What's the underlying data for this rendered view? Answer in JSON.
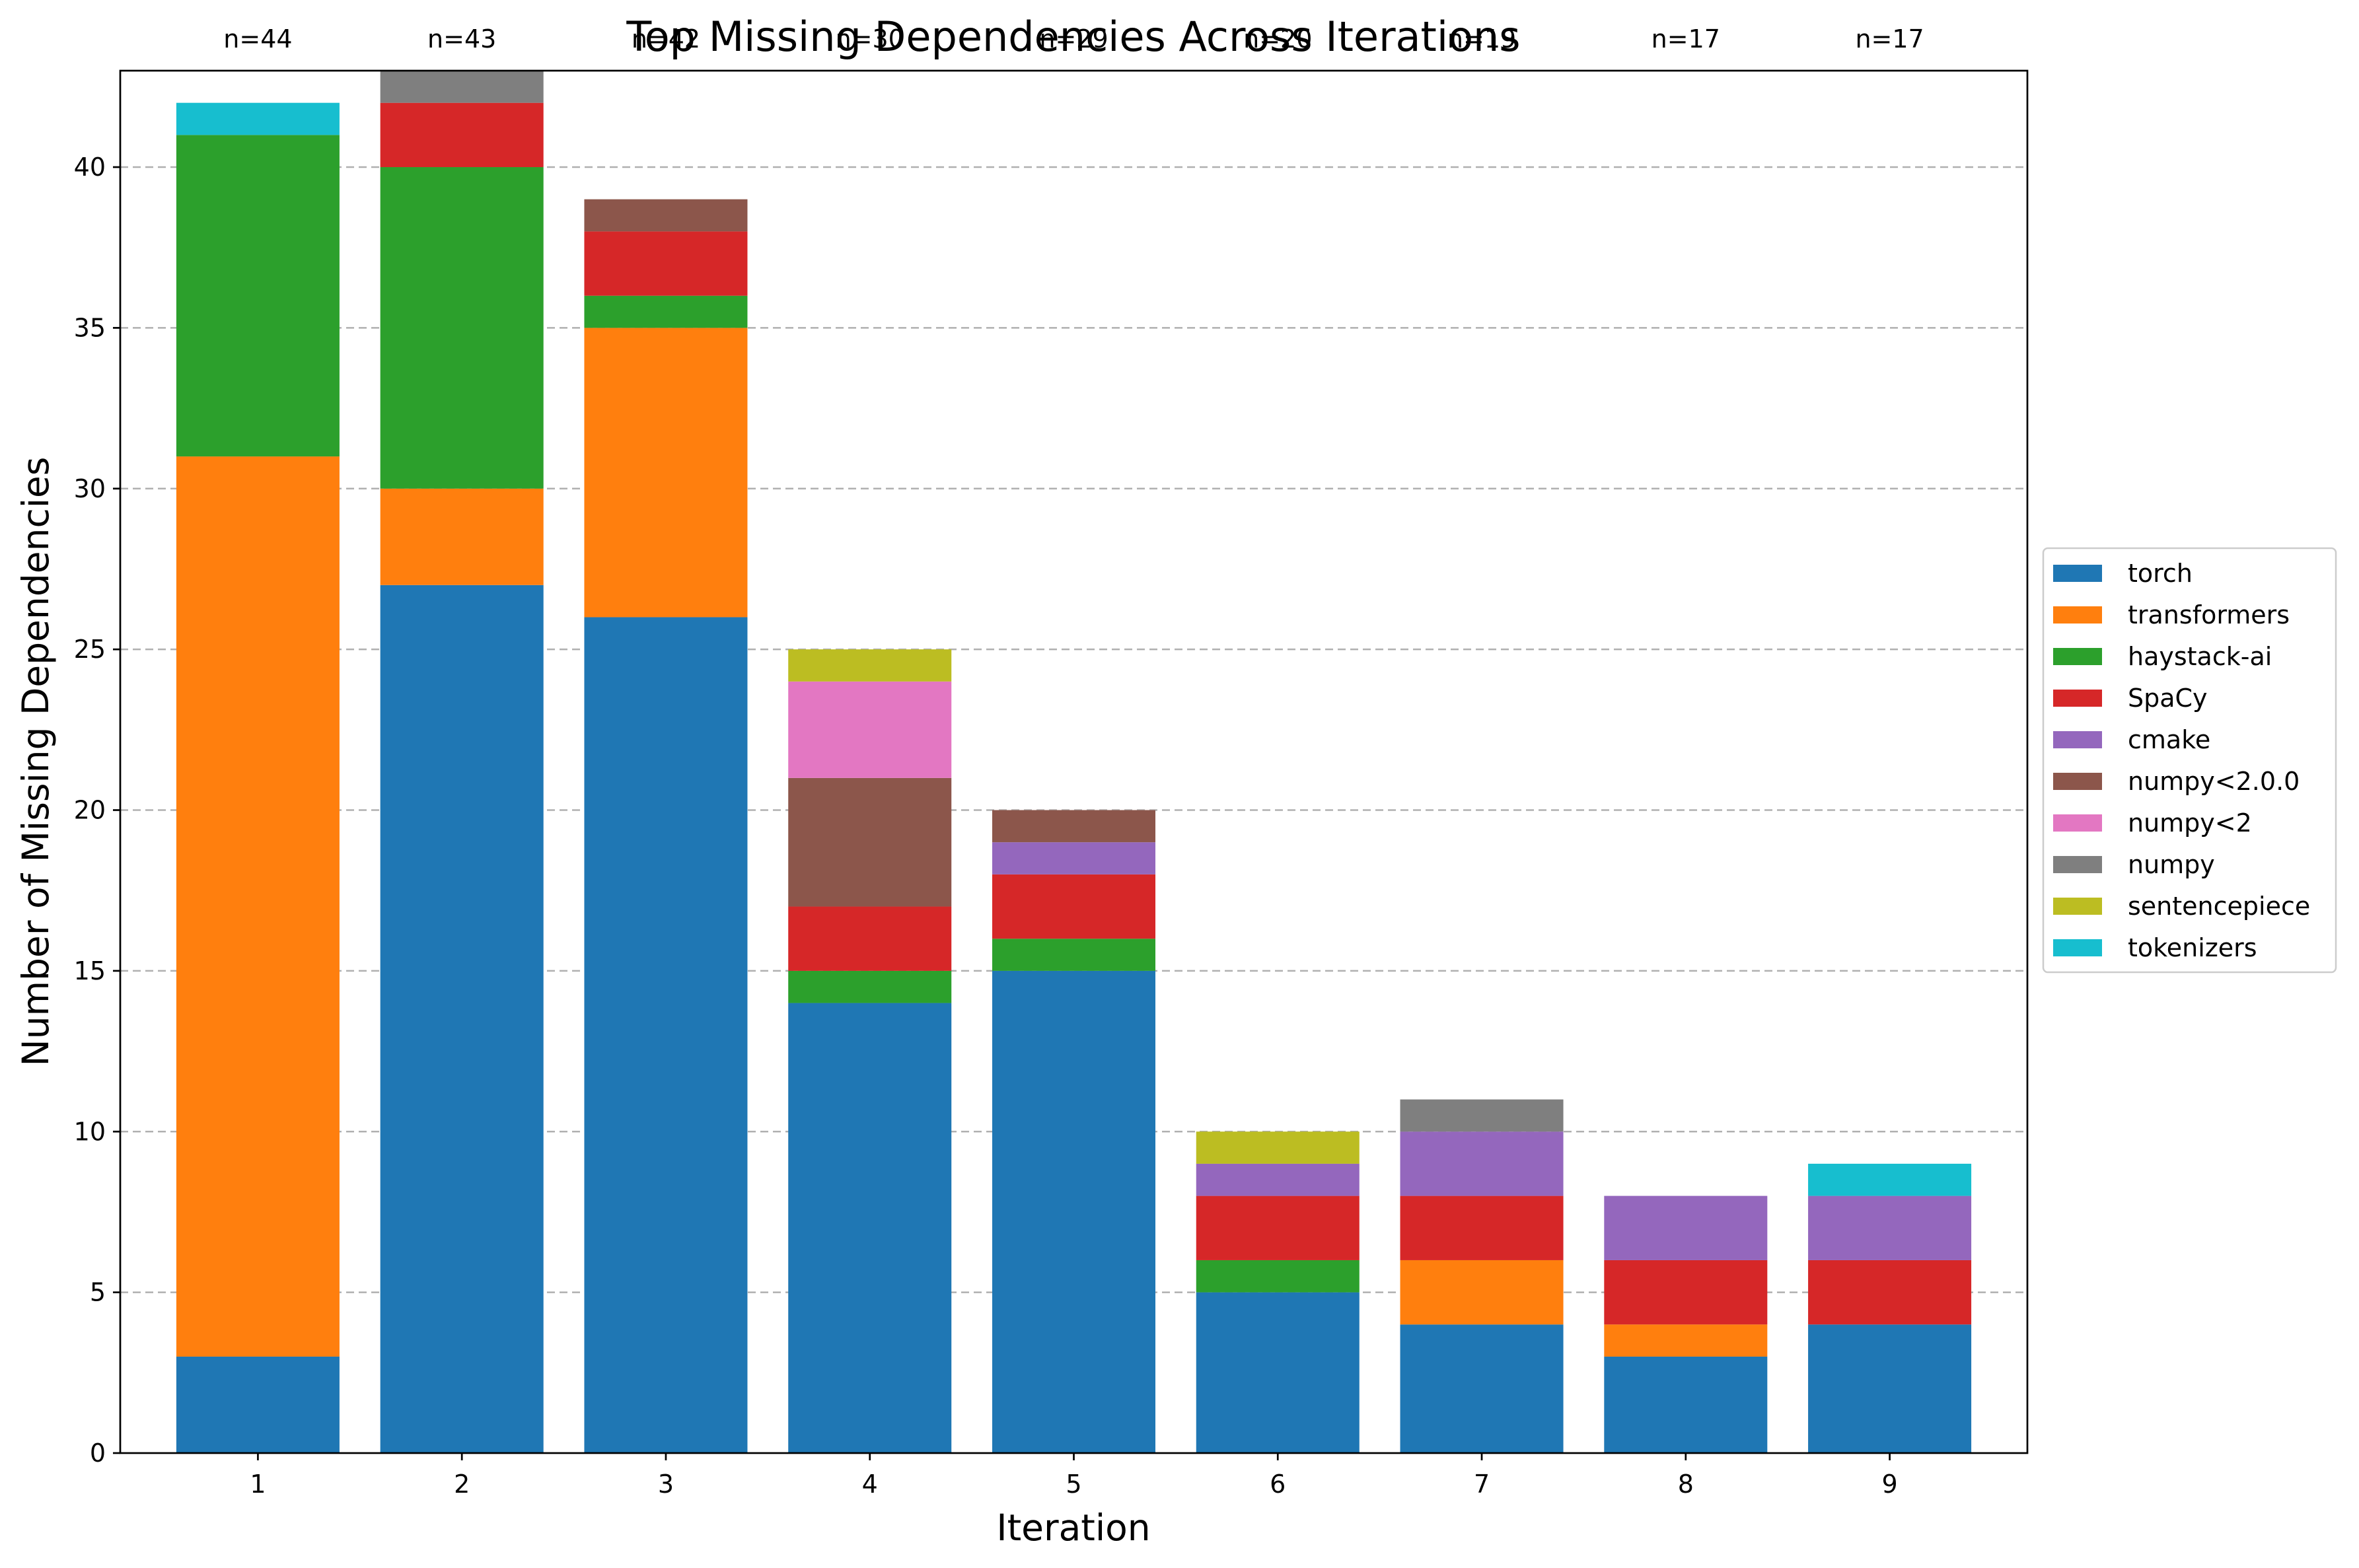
{
  "chart_data": {
    "type": "bar",
    "stacked": true,
    "title": "Top Missing Dependencies Across Iterations",
    "xlabel": "Iteration",
    "ylabel": "Number of Missing Dependencies",
    "categories": [
      "1",
      "2",
      "3",
      "4",
      "5",
      "6",
      "7",
      "8",
      "9"
    ],
    "ylim": [
      0,
      43
    ],
    "yticks": [
      0,
      5,
      10,
      15,
      20,
      25,
      30,
      35,
      40
    ],
    "grid": "y-dashed",
    "legend_position": "right",
    "count_labels": [
      "n=44",
      "n=43",
      "n=42",
      "n=30",
      "n=29",
      "n=20",
      "n=19",
      "n=17",
      "n=17"
    ],
    "series": [
      {
        "name": "torch",
        "color": "#1f77b4",
        "values": [
          3,
          27,
          26,
          14,
          15,
          5,
          4,
          3,
          4
        ]
      },
      {
        "name": "transformers",
        "color": "#ff7f0e",
        "values": [
          28,
          3,
          9,
          0,
          0,
          0,
          2,
          1,
          0
        ]
      },
      {
        "name": "haystack-ai",
        "color": "#2ca02c",
        "values": [
          10,
          10,
          1,
          1,
          1,
          1,
          0,
          0,
          0
        ]
      },
      {
        "name": "SpaCy",
        "color": "#d62728",
        "values": [
          0,
          2,
          2,
          2,
          2,
          2,
          2,
          2,
          2
        ]
      },
      {
        "name": "cmake",
        "color": "#9467bd",
        "values": [
          0,
          0,
          0,
          0,
          1,
          1,
          2,
          2,
          2
        ]
      },
      {
        "name": "numpy<2.0.0",
        "color": "#8c564b",
        "values": [
          0,
          0,
          1,
          4,
          1,
          0,
          0,
          0,
          0
        ]
      },
      {
        "name": "numpy<2",
        "color": "#e377c2",
        "values": [
          0,
          0,
          0,
          3,
          0,
          0,
          0,
          0,
          0
        ]
      },
      {
        "name": "numpy",
        "color": "#7f7f7f",
        "values": [
          0,
          1,
          0,
          0,
          0,
          0,
          1,
          0,
          0
        ]
      },
      {
        "name": "sentencepiece",
        "color": "#bcbd22",
        "values": [
          0,
          0,
          0,
          1,
          0,
          1,
          0,
          0,
          0
        ]
      },
      {
        "name": "tokenizers",
        "color": "#17becf",
        "values": [
          1,
          0,
          0,
          0,
          0,
          0,
          0,
          0,
          1
        ]
      }
    ]
  }
}
